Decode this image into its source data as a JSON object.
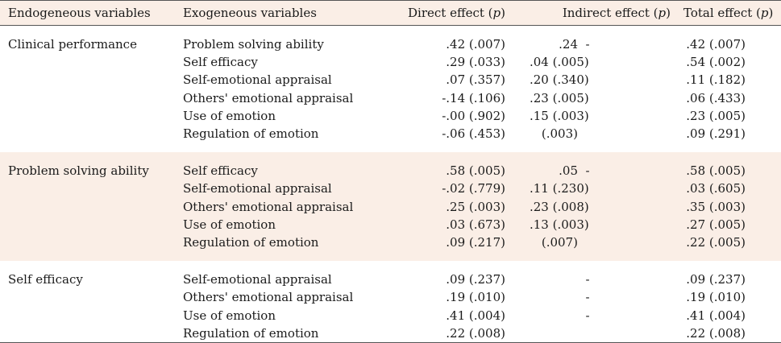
{
  "headers": [
    {
      "text": "Endogeneous variables"
    },
    {
      "text": "Exogeneous variables"
    },
    {
      "text": "Direct effect (",
      "italic": "p",
      "close": ")"
    },
    {
      "text": "Indirect effect (",
      "italic": "p",
      "close": ")"
    },
    {
      "text": "Total effect (",
      "italic": "p",
      "close": ")"
    }
  ],
  "groups": [
    {
      "endogenous": "Clinical performance",
      "rows": [
        {
          "exo": "Problem solving ability",
          "direct": ".42 (.007)",
          "indirect": ".24",
          "indirect_dash": "-",
          "total": ".42 (.007)"
        },
        {
          "exo": "Self efficacy",
          "direct": ".29 (.033)",
          "indirect": ".04 (.005)",
          "indirect_dash": "",
          "total": ".54 (.002)"
        },
        {
          "exo": "Self-emotional appraisal",
          "direct": ".07 (.357)",
          "indirect": ".20 (.340)",
          "indirect_dash": "",
          "total": ".11 (.182)"
        },
        {
          "exo": "Others' emotional appraisal",
          "direct": "-.14 (.106)",
          "indirect": ".23 (.005)",
          "indirect_dash": "",
          "total": ".06 (.433)"
        },
        {
          "exo": "Use of emotion",
          "direct": "-.00 (.902)",
          "indirect": ".15 (.003)",
          "indirect_dash": "",
          "total": ".23 (.005)"
        },
        {
          "exo": "Regulation of emotion",
          "direct": "-.06 (.453)",
          "indirect": "(.003)",
          "indirect_dash": "",
          "total": ".09 (.291)"
        }
      ]
    },
    {
      "endogenous": "Problem solving ability",
      "rows": [
        {
          "exo": "Self efficacy",
          "direct": ".58 (.005)",
          "indirect": ".05",
          "indirect_dash": "-",
          "total": ".58 (.005)"
        },
        {
          "exo": "Self-emotional appraisal",
          "direct": "-.02 (.779)",
          "indirect": ".11 (.230)",
          "indirect_dash": "",
          "total": ".03 (.605)"
        },
        {
          "exo": "Others' emotional appraisal",
          "direct": ".25 (.003)",
          "indirect": ".23 (.008)",
          "indirect_dash": "",
          "total": ".35 (.003)"
        },
        {
          "exo": "Use of emotion",
          "direct": ".03 (.673)",
          "indirect": ".13 (.003)",
          "indirect_dash": "",
          "total": ".27 (.005)"
        },
        {
          "exo": "Regulation of emotion",
          "direct": ".09 (.217)",
          "indirect": "(.007)",
          "indirect_dash": "",
          "total": ".22 (.005)"
        }
      ]
    },
    {
      "endogenous": "Self efficacy",
      "rows": [
        {
          "exo": "Self-emotional appraisal",
          "direct": ".09 (.237)",
          "indirect": "",
          "indirect_dash": "-",
          "total": ".09 (.237)"
        },
        {
          "exo": "Others' emotional appraisal",
          "direct": ".19 (.010)",
          "indirect": "",
          "indirect_dash": "-",
          "total": ".19 (.010)"
        },
        {
          "exo": "Use of emotion",
          "direct": ".41 (.004)",
          "indirect": "",
          "indirect_dash": "-",
          "total": ".41 (.004)"
        },
        {
          "exo": "Regulation of emotion",
          "direct": ".22 (.008)",
          "indirect": "",
          "indirect_dash": "",
          "total": ".22 (.008)"
        }
      ]
    }
  ],
  "colors": {
    "shade": "#faeee6",
    "rule": "#555555",
    "text": "#1a1a1a"
  }
}
